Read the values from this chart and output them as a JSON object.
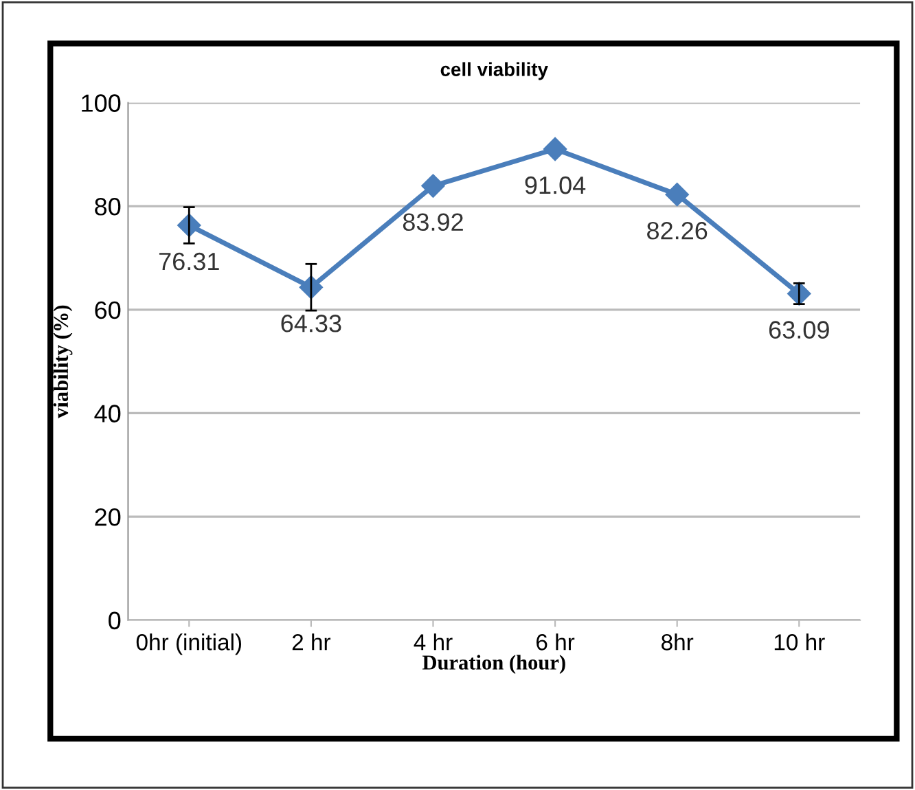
{
  "chart_data": {
    "type": "line",
    "title": "cell viability",
    "xlabel": "Duration (hour)",
    "ylabel": "viability (%)",
    "categories": [
      "0hr (initial)",
      "2 hr",
      "4 hr",
      "6 hr",
      "8hr",
      "10 hr"
    ],
    "series": [
      {
        "color": "#4a7ebb",
        "values": [
          76.31,
          64.33,
          83.92,
          91.04,
          82.26,
          63.09
        ],
        "errors": [
          3.5,
          4.5,
          null,
          null,
          null,
          2
        ]
      }
    ],
    "ylim": [
      0,
      100
    ],
    "yticks": [
      0,
      20,
      40,
      60,
      80,
      100
    ],
    "grid": "y",
    "marker": "diamond",
    "line_style": "solid",
    "data_labels": true
  }
}
